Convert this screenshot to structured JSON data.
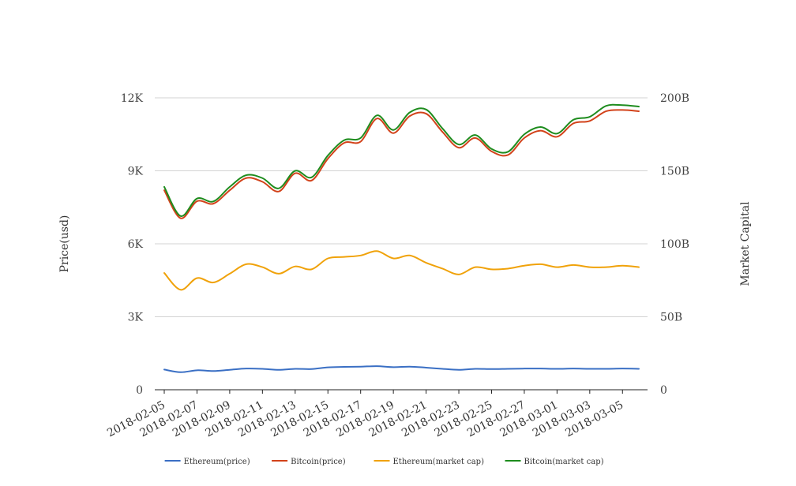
{
  "chart_data": {
    "type": "line",
    "x": [
      "2018-02-05",
      "2018-02-06",
      "2018-02-07",
      "2018-02-08",
      "2018-02-09",
      "2018-02-10",
      "2018-02-11",
      "2018-02-12",
      "2018-02-13",
      "2018-02-14",
      "2018-02-15",
      "2018-02-16",
      "2018-02-17",
      "2018-02-18",
      "2018-02-19",
      "2018-02-20",
      "2018-02-21",
      "2018-02-22",
      "2018-02-23",
      "2018-02-24",
      "2018-02-25",
      "2018-02-26",
      "2018-02-27",
      "2018-02-28",
      "2018-03-01",
      "2018-03-02",
      "2018-03-03",
      "2018-03-04",
      "2018-03-05",
      "2018-03-06"
    ],
    "x_tick_labels": [
      "2018-02-05",
      "2018-02-07",
      "2018-02-09",
      "2018-02-11",
      "2018-02-13",
      "2018-02-15",
      "2018-02-17",
      "2018-02-19",
      "2018-02-21",
      "2018-02-23",
      "2018-02-25",
      "2018-02-27",
      "2018-03-01",
      "2018-03-03",
      "2018-03-05"
    ],
    "y_left": {
      "label": "Price(usd)",
      "range": [
        0,
        12000
      ],
      "ticks": [
        0,
        3000,
        6000,
        9000,
        12000
      ],
      "tick_labels": [
        "0",
        "3K",
        "6K",
        "9K",
        "12K"
      ]
    },
    "y_right": {
      "label": "Market Capital",
      "range": [
        0,
        200000000000
      ],
      "ticks": [
        0,
        50000000000,
        100000000000,
        150000000000,
        200000000000
      ],
      "tick_labels": [
        "0",
        "50B",
        "100B",
        "150B",
        "200B"
      ]
    },
    "grid": true,
    "legend_position": "bottom",
    "series": [
      {
        "name": "Ethereum(price)",
        "axis": "left",
        "color": "#3a6fc4",
        "values": [
          830,
          720,
          800,
          770,
          820,
          870,
          860,
          820,
          860,
          850,
          920,
          940,
          950,
          970,
          930,
          950,
          910,
          860,
          820,
          860,
          850,
          860,
          870,
          870,
          860,
          870,
          860,
          860,
          870,
          860
        ]
      },
      {
        "name": "Bitcoin(price)",
        "axis": "left",
        "color": "#d2421a",
        "values": [
          8200,
          7050,
          7750,
          7650,
          8200,
          8700,
          8550,
          8150,
          8900,
          8600,
          9500,
          10150,
          10200,
          11150,
          10550,
          11250,
          11350,
          10600,
          9950,
          10350,
          9800,
          9650,
          10350,
          10650,
          10400,
          10950,
          11050,
          11450,
          11500,
          11450
        ]
      },
      {
        "name": "Ethereum(market cap)",
        "axis": "right",
        "color": "#f0a20a",
        "values": [
          80000000000,
          68500000000,
          76500000000,
          73500000000,
          79500000000,
          86000000000,
          84000000000,
          79500000000,
          84500000000,
          82500000000,
          90000000000,
          91000000000,
          92000000000,
          95000000000,
          90000000000,
          92000000000,
          87000000000,
          83000000000,
          79000000000,
          84000000000,
          82500000000,
          83000000000,
          85000000000,
          86000000000,
          84000000000,
          85500000000,
          84000000000,
          84000000000,
          85000000000,
          84000000000
        ]
      },
      {
        "name": "Bitcoin(market cap)",
        "axis": "right",
        "color": "#1e8c1e",
        "values": [
          139000000000,
          119000000000,
          131000000000,
          129000000000,
          139000000000,
          147000000000,
          145000000000,
          138000000000,
          150000000000,
          145500000000,
          160500000000,
          171000000000,
          172500000000,
          188000000000,
          178000000000,
          190000000000,
          192000000000,
          179000000000,
          168000000000,
          174500000000,
          165000000000,
          163000000000,
          175000000000,
          180000000000,
          175500000000,
          185000000000,
          187000000000,
          194500000000,
          195000000000,
          194000000000
        ]
      }
    ]
  }
}
